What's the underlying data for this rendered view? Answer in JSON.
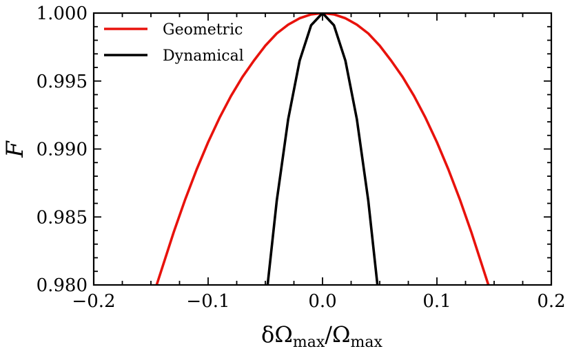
{
  "chart_data": {
    "type": "line",
    "xlabel": {
      "main": "δΩ",
      "sub": "max",
      "slash": "/Ω",
      "sub2": "max"
    },
    "ylabel": "F",
    "xlim": [
      -0.2,
      0.2
    ],
    "ylim": [
      0.98,
      1.0
    ],
    "xticks": [
      -0.2,
      -0.1,
      0.0,
      0.1,
      0.2
    ],
    "xtick_labels": [
      "−0.2",
      "−0.1",
      "0.0",
      "0.1",
      "0.2"
    ],
    "yticks": [
      0.98,
      0.985,
      0.99,
      0.995,
      1.0
    ],
    "ytick_labels": [
      "0.980",
      "0.985",
      "0.990",
      "0.995",
      "1.000"
    ],
    "grid": false,
    "legend_position": "top-left",
    "series": [
      {
        "name": "Geometric",
        "color": "#e8120c",
        "x": [
          -0.145,
          -0.13,
          -0.12,
          -0.11,
          -0.1,
          -0.09,
          -0.08,
          -0.07,
          -0.06,
          -0.05,
          -0.04,
          -0.03,
          -0.02,
          -0.01,
          0.0,
          0.01,
          0.02,
          0.03,
          0.04,
          0.05,
          0.06,
          0.07,
          0.08,
          0.09,
          0.1,
          0.11,
          0.12,
          0.13,
          0.145
        ],
        "y": [
          0.98,
          0.9839,
          0.9863,
          0.9885,
          0.9905,
          0.9923,
          0.9939,
          0.9953,
          0.9965,
          0.9976,
          0.9985,
          0.99915,
          0.99962,
          0.9999,
          1.0,
          0.9999,
          0.99962,
          0.99915,
          0.9985,
          0.9976,
          0.9965,
          0.9953,
          0.9939,
          0.9923,
          0.9905,
          0.9885,
          0.9863,
          0.9839,
          0.98
        ]
      },
      {
        "name": "Dynamical",
        "color": "#000000",
        "x": [
          -0.048,
          -0.04,
          -0.03,
          -0.02,
          -0.01,
          0.0,
          0.01,
          0.02,
          0.03,
          0.04,
          0.048
        ],
        "y": [
          0.98,
          0.9862,
          0.9922,
          0.9965,
          0.9991,
          1.0,
          0.9991,
          0.9965,
          0.9922,
          0.9862,
          0.98
        ]
      }
    ]
  }
}
